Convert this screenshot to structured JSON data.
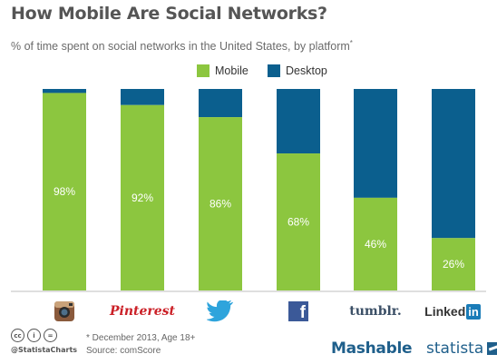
{
  "header": {
    "title": "How Mobile Are Social Networks?",
    "subtitle": "% of time spent on social networks in the United States, by platform",
    "subtitle_mark": "*"
  },
  "legend": {
    "mobile_label": "Mobile",
    "desktop_label": "Desktop"
  },
  "colors": {
    "mobile": "#8cc63f",
    "desktop": "#0b5f8e"
  },
  "platforms": [
    {
      "name": "Instagram",
      "icon": "instagram-icon"
    },
    {
      "name": "Pinterest",
      "icon": "pinterest-logo",
      "label": "Pinterest"
    },
    {
      "name": "Twitter",
      "icon": "twitter-icon"
    },
    {
      "name": "Facebook",
      "icon": "facebook-icon",
      "label": "f"
    },
    {
      "name": "Tumblr",
      "icon": "tumblr-logo",
      "label": "tumblr."
    },
    {
      "name": "LinkedIn",
      "icon": "linkedin-logo",
      "label": "Linked",
      "label2": "in"
    }
  ],
  "chart_data": {
    "type": "bar",
    "stacked": true,
    "categories": [
      "Instagram",
      "Pinterest",
      "Twitter",
      "Facebook",
      "Tumblr",
      "LinkedIn"
    ],
    "series": [
      {
        "name": "Mobile",
        "values": [
          98,
          92,
          86,
          68,
          46,
          26
        ]
      },
      {
        "name": "Desktop",
        "values": [
          2,
          8,
          14,
          32,
          54,
          74
        ]
      }
    ],
    "data_labels": [
      "98%",
      "92%",
      "86%",
      "68%",
      "46%",
      "26%"
    ],
    "ylim": [
      0,
      100
    ],
    "grid": false,
    "legend_position": "top-center"
  },
  "footer": {
    "cc_icons": [
      "cc-icon",
      "by-icon",
      "nd-icon"
    ],
    "cc_texts": [
      "cc",
      "i",
      "="
    ],
    "handle": "@StatistaCharts",
    "note": "* December 2013, Age 18+",
    "source": "Source: comScore",
    "brand1": "Mashable",
    "brand2": "statista"
  }
}
